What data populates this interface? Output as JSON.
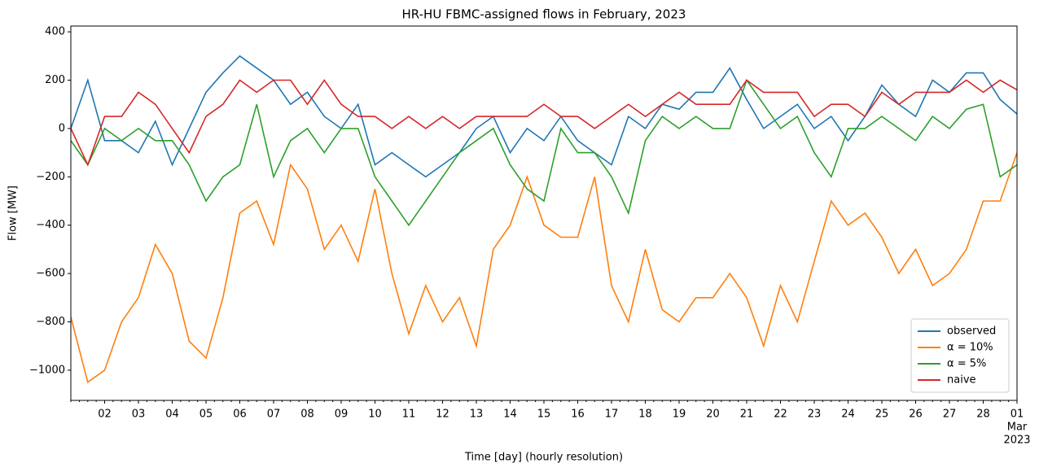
{
  "chart_data": {
    "type": "line",
    "title": "HR-HU FBMC-assigned flows in February, 2023",
    "xlabel": "Time [day] (hourly resolution)",
    "ylabel": "Flow [MW]",
    "x": [
      0,
      0.5,
      1,
      1.5,
      2,
      2.5,
      3,
      3.5,
      4,
      4.5,
      5,
      5.5,
      6,
      6.5,
      7,
      7.5,
      8,
      8.5,
      9,
      9.5,
      10,
      10.5,
      11,
      11.5,
      12,
      12.5,
      13,
      13.5,
      14,
      14.5,
      15,
      15.5,
      16,
      16.5,
      17,
      17.5,
      18,
      18.5,
      19,
      19.5,
      20,
      20.5,
      21,
      21.5,
      22,
      22.5,
      23,
      23.5,
      24,
      24.5,
      25,
      25.5,
      26,
      26.5,
      27,
      27.5,
      28
    ],
    "series": [
      {
        "name": "observed",
        "color": "#1f77b4",
        "values": [
          0,
          200,
          -50,
          -50,
          -100,
          30,
          -150,
          0,
          150,
          230,
          300,
          250,
          200,
          100,
          150,
          50,
          0,
          100,
          -150,
          -100,
          -150,
          -200,
          -150,
          -100,
          0,
          50,
          -100,
          0,
          -50,
          50,
          -50,
          -100,
          -150,
          50,
          0,
          100,
          80,
          150,
          150,
          250,
          120,
          0,
          50,
          100,
          0,
          50,
          -50,
          50,
          180,
          100,
          50,
          200,
          150,
          230,
          230,
          120,
          60
        ]
      },
      {
        "name": "α = 10%",
        "color": "#ff7f0e",
        "values": [
          -780,
          -1050,
          -1000,
          -800,
          -700,
          -480,
          -600,
          -880,
          -950,
          -700,
          -350,
          -300,
          -480,
          -150,
          -250,
          -500,
          -400,
          -550,
          -250,
          -600,
          -850,
          -650,
          -800,
          -700,
          -900,
          -500,
          -400,
          -200,
          -400,
          -450,
          -450,
          -200,
          -650,
          -800,
          -500,
          -750,
          -800,
          -700,
          -700,
          -600,
          -700,
          -900,
          -650,
          -800,
          -550,
          -300,
          -400,
          -350,
          -450,
          -600,
          -500,
          -650,
          -600,
          -500,
          -300,
          -300,
          -100
        ]
      },
      {
        "name": "α = 5%",
        "color": "#2ca02c",
        "values": [
          -50,
          -150,
          0,
          -50,
          0,
          -50,
          -50,
          -150,
          -300,
          -200,
          -150,
          100,
          -200,
          -50,
          0,
          -100,
          0,
          0,
          -200,
          -300,
          -400,
          -300,
          -200,
          -100,
          -50,
          0,
          -150,
          -250,
          -300,
          0,
          -100,
          -100,
          -200,
          -350,
          -50,
          50,
          0,
          50,
          0,
          0,
          200,
          100,
          0,
          50,
          -100,
          -200,
          0,
          0,
          50,
          0,
          -50,
          50,
          0,
          80,
          100,
          -200,
          -150
        ]
      },
      {
        "name": "naive",
        "color": "#d62728",
        "values": [
          0,
          -150,
          50,
          50,
          150,
          100,
          0,
          -100,
          50,
          100,
          200,
          150,
          200,
          200,
          100,
          200,
          100,
          50,
          50,
          0,
          50,
          0,
          50,
          0,
          50,
          50,
          50,
          50,
          100,
          50,
          50,
          0,
          50,
          100,
          50,
          100,
          150,
          100,
          100,
          100,
          200,
          150,
          150,
          150,
          50,
          100,
          100,
          50,
          150,
          100,
          150,
          150,
          150,
          200,
          150,
          200,
          160
        ]
      }
    ],
    "xlim": [
      0,
      28
    ],
    "xticks": [
      {
        "value": 1,
        "label": "02"
      },
      {
        "value": 2,
        "label": "03"
      },
      {
        "value": 3,
        "label": "04"
      },
      {
        "value": 4,
        "label": "05"
      },
      {
        "value": 5,
        "label": "06"
      },
      {
        "value": 6,
        "label": "07"
      },
      {
        "value": 7,
        "label": "08"
      },
      {
        "value": 8,
        "label": "09"
      },
      {
        "value": 9,
        "label": "10"
      },
      {
        "value": 10,
        "label": "11"
      },
      {
        "value": 11,
        "label": "12"
      },
      {
        "value": 12,
        "label": "13"
      },
      {
        "value": 13,
        "label": "14"
      },
      {
        "value": 14,
        "label": "15"
      },
      {
        "value": 15,
        "label": "16"
      },
      {
        "value": 16,
        "label": "17"
      },
      {
        "value": 17,
        "label": "18"
      },
      {
        "value": 18,
        "label": "19"
      },
      {
        "value": 19,
        "label": "20"
      },
      {
        "value": 20,
        "label": "21"
      },
      {
        "value": 21,
        "label": "22"
      },
      {
        "value": 22,
        "label": "23"
      },
      {
        "value": 23,
        "label": "24"
      },
      {
        "value": 24,
        "label": "25"
      },
      {
        "value": 25,
        "label": "26"
      },
      {
        "value": 26,
        "label": "27"
      },
      {
        "value": 27,
        "label": "28"
      },
      {
        "value": 28,
        "label": "01"
      }
    ],
    "xtick_sublabels": [
      "Mar",
      "2023"
    ],
    "ylim": [
      -1125,
      424
    ],
    "yticks": [
      400,
      200,
      0,
      {
        "value": -200,
        "label": "−200"
      },
      {
        "value": -400,
        "label": "−400"
      },
      {
        "value": -600,
        "label": "−600"
      },
      {
        "value": -800,
        "label": "−800"
      },
      {
        "value": -1000,
        "label": "−1000"
      }
    ],
    "legend": "lower right",
    "grid": false
  }
}
